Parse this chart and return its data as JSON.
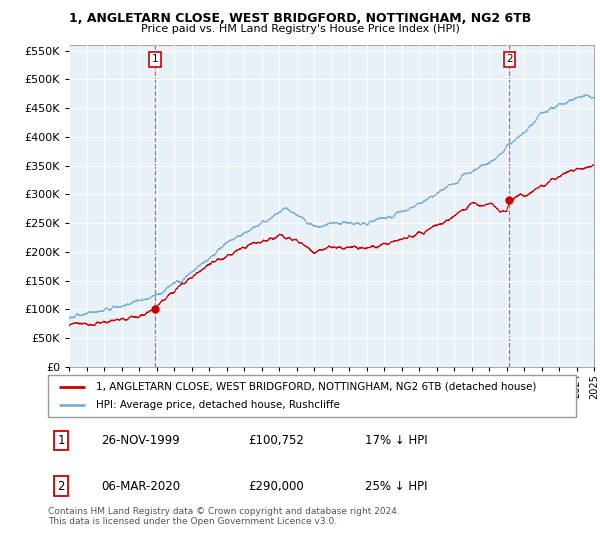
{
  "title": "1, ANGLETARN CLOSE, WEST BRIDGFORD, NOTTINGHAM, NG2 6TB",
  "subtitle": "Price paid vs. HM Land Registry's House Price Index (HPI)",
  "legend_line1": "1, ANGLETARN CLOSE, WEST BRIDGFORD, NOTTINGHAM, NG2 6TB (detached house)",
  "legend_line2": "HPI: Average price, detached house, Rushcliffe",
  "annotation1_label": "1",
  "annotation1_date": "26-NOV-1999",
  "annotation1_price": "£100,752",
  "annotation1_hpi": "17% ↓ HPI",
  "annotation2_label": "2",
  "annotation2_date": "06-MAR-2020",
  "annotation2_price": "£290,000",
  "annotation2_hpi": "25% ↓ HPI",
  "footer": "Contains HM Land Registry data © Crown copyright and database right 2024.\nThis data is licensed under the Open Government Licence v3.0.",
  "ylim": [
    0,
    560000
  ],
  "yticks": [
    0,
    50000,
    100000,
    150000,
    200000,
    250000,
    300000,
    350000,
    400000,
    450000,
    500000,
    550000
  ],
  "red_color": "#cc0000",
  "blue_color": "#7aafd4",
  "chart_bg": "#e8f0f8",
  "sale1_x": 1999.9,
  "sale1_y": 100752,
  "sale2_x": 2020.17,
  "sale2_y": 290000,
  "xmin": 1995,
  "xmax": 2025
}
